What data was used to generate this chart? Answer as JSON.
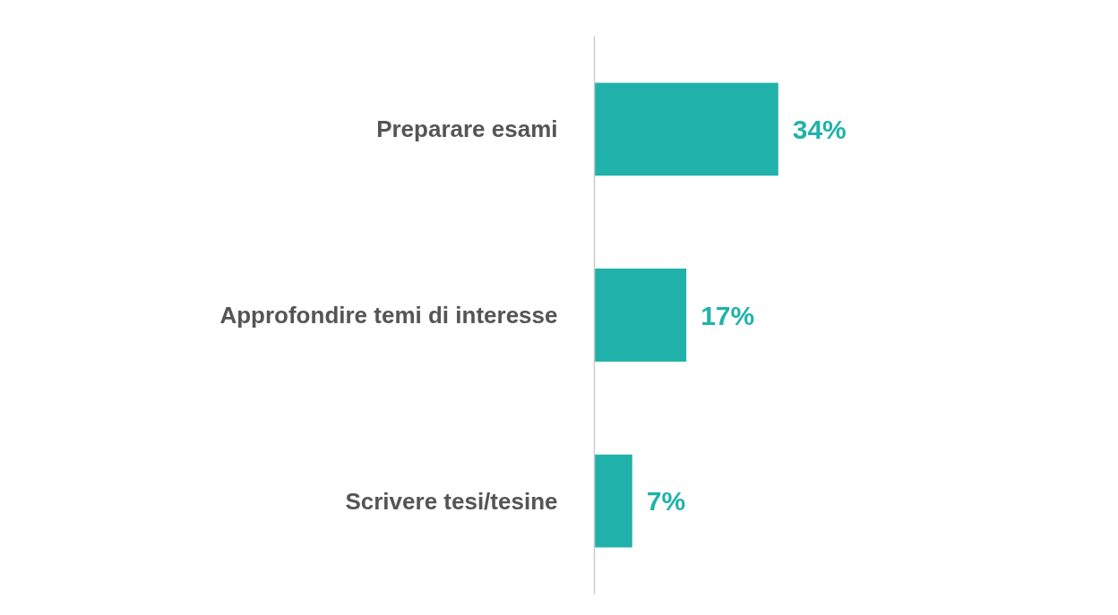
{
  "chart_data": {
    "type": "bar",
    "orientation": "horizontal",
    "categories": [
      "Preparare esami",
      "Approfondire temi di interesse",
      "Scrivere tesi/tesine"
    ],
    "values": [
      34,
      17,
      7
    ],
    "value_labels": [
      "34%",
      "17%",
      "7%"
    ],
    "color": "#20b2aa",
    "tick_labels": "y",
    "grid": false
  }
}
